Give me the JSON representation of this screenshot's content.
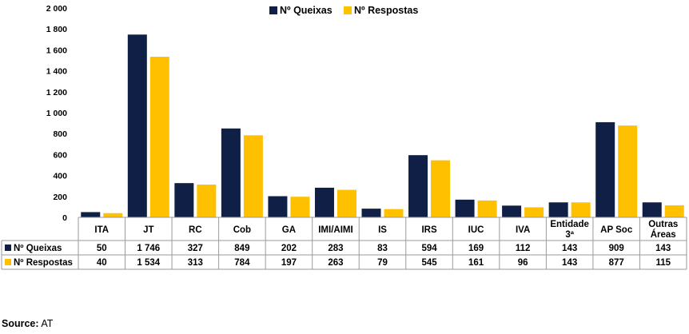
{
  "chart_data": {
    "type": "bar",
    "categories": [
      "ITA",
      "JT",
      "RC",
      "Cob",
      "GA",
      "IMI/AIMI",
      "IS",
      "IRS",
      "IUC",
      "IVA",
      "Entidade 3ª",
      "AP Soc",
      "Outras Áreas"
    ],
    "category_lines": [
      [
        "ITA"
      ],
      [
        "JT"
      ],
      [
        "RC"
      ],
      [
        "Cob"
      ],
      [
        "GA"
      ],
      [
        "IMI/AIMI"
      ],
      [
        "IS"
      ],
      [
        "IRS"
      ],
      [
        "IUC"
      ],
      [
        "IVA"
      ],
      [
        "Entidade",
        "3ª"
      ],
      [
        "AP Soc"
      ],
      [
        "Outras",
        "Áreas"
      ]
    ],
    "series": [
      {
        "name": "Nº Queixas",
        "color": "#0f1f45",
        "values": [
          50,
          1746,
          327,
          849,
          202,
          283,
          83,
          594,
          169,
          112,
          143,
          909,
          143
        ],
        "labels": [
          "50",
          "1 746",
          "327",
          "849",
          "202",
          "283",
          "83",
          "594",
          "169",
          "112",
          "143",
          "909",
          "143"
        ]
      },
      {
        "name": "Nº Respostas",
        "color": "#ffc000",
        "values": [
          40,
          1534,
          313,
          784,
          197,
          263,
          79,
          545,
          161,
          96,
          143,
          877,
          115
        ],
        "labels": [
          "40",
          "1 534",
          "313",
          "784",
          "197",
          "263",
          "79",
          "545",
          "161",
          "96",
          "143",
          "877",
          "115"
        ]
      }
    ],
    "yticks": [
      "0",
      "200",
      "400",
      "600",
      "800",
      "1 000",
      "1 200",
      "1 400",
      "1 600",
      "1 800",
      "2 000"
    ],
    "ylim": [
      0,
      2000
    ],
    "grid": false,
    "legend": "top-center",
    "data_table": true
  },
  "source": {
    "label": "Source:",
    "value": "AT"
  }
}
